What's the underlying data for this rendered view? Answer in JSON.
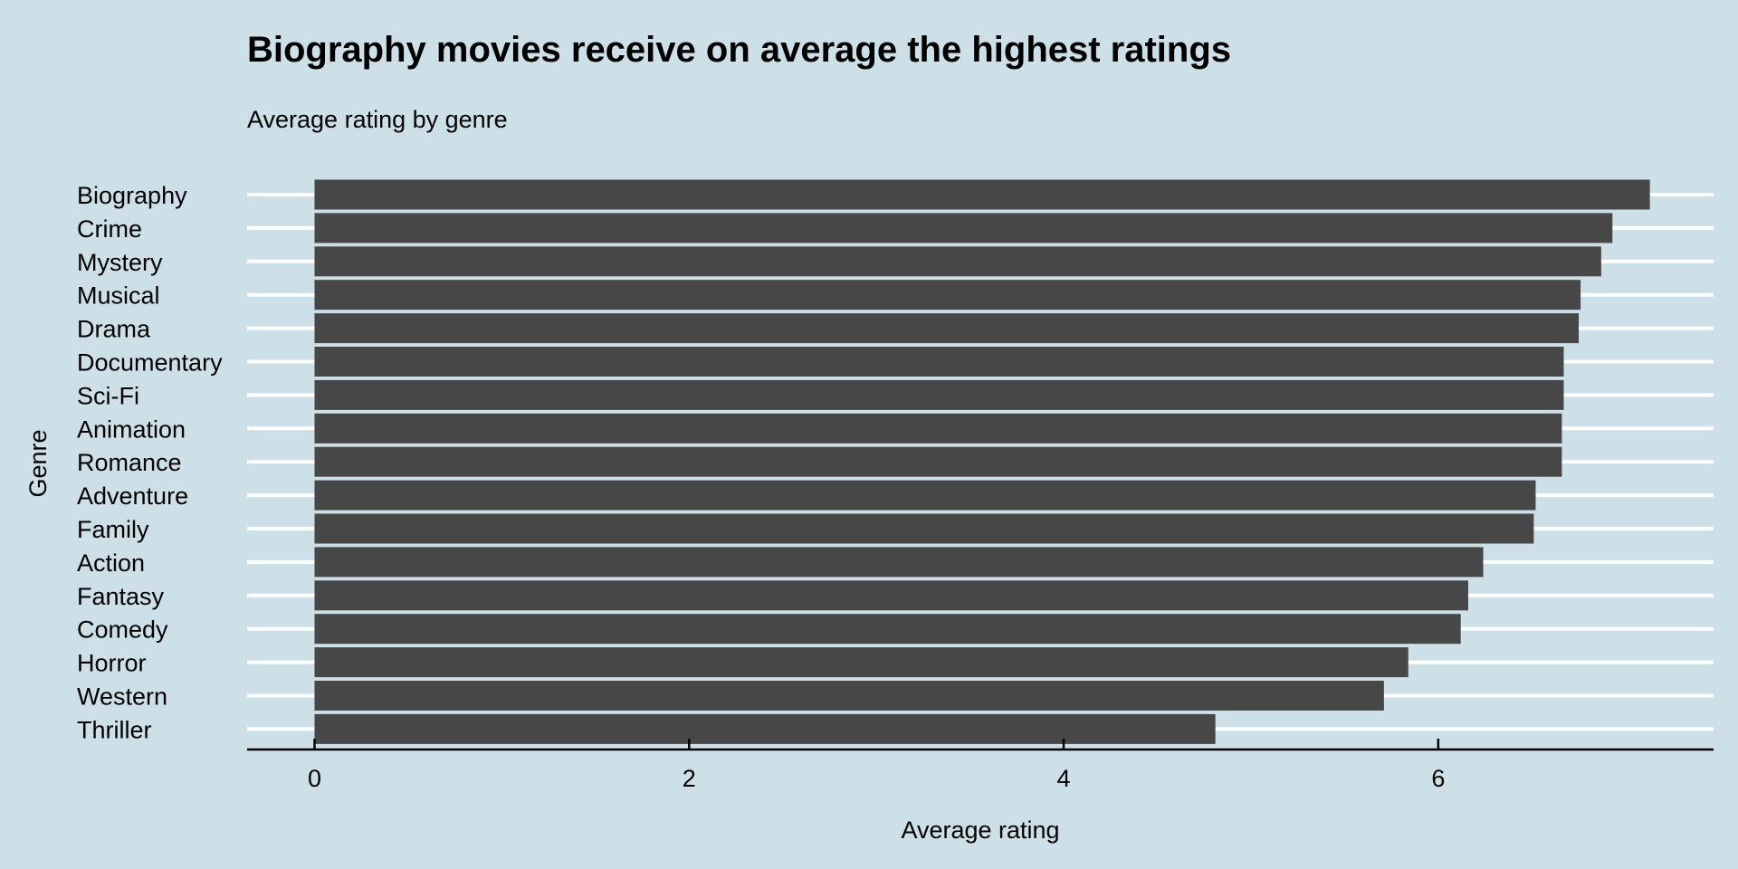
{
  "chart_data": {
    "type": "bar",
    "orientation": "horizontal",
    "title": "Biography movies receive on average the highest ratings",
    "subtitle": "Average rating by genre",
    "xlabel": "Average rating",
    "ylabel": "Genre",
    "xlim": [
      -0.36,
      7.47
    ],
    "xticks": [
      0,
      2,
      4,
      6
    ],
    "grid": "horizontal",
    "legend": "none",
    "categories": [
      "Biography",
      "Crime",
      "Mystery",
      "Musical",
      "Drama",
      "Documentary",
      "Sci-Fi",
      "Animation",
      "Romance",
      "Adventure",
      "Family",
      "Action",
      "Fantasy",
      "Comedy",
      "Horror",
      "Western",
      "Thriller"
    ],
    "values": [
      7.13,
      6.93,
      6.87,
      6.76,
      6.75,
      6.67,
      6.67,
      6.66,
      6.66,
      6.52,
      6.51,
      6.24,
      6.16,
      6.12,
      5.84,
      5.71,
      4.81
    ],
    "colors": {
      "background": "#cde0e7",
      "bar": "#474747",
      "grid": "#ffffff"
    }
  }
}
